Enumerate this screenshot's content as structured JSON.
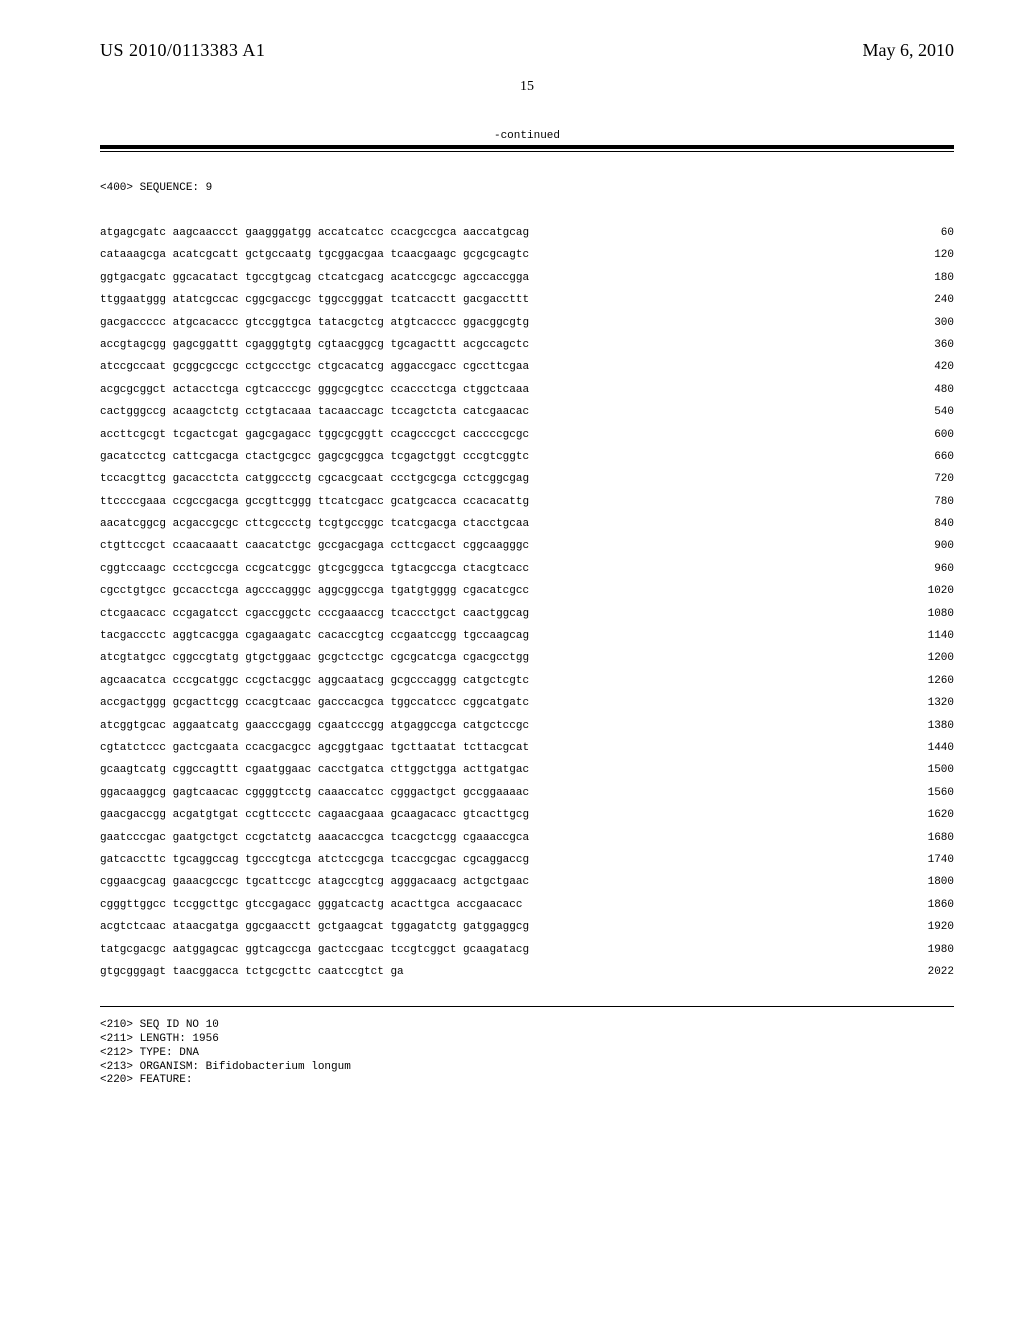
{
  "header": {
    "publication_number": "US 2010/0113383 A1",
    "date": "May 6, 2010",
    "page_number": "15"
  },
  "continued_label": "-continued",
  "sequence_header": "<400> SEQUENCE: 9",
  "sequence_lines": [
    {
      "bases": "atgagcgatc aagcaaccct gaagggatgg accatcatcc ccacgccgca aaccatgcag",
      "pos": "60"
    },
    {
      "bases": "cataaagcga acatcgcatt gctgccaatg tgcggacgaa tcaacgaagc gcgcgcagtc",
      "pos": "120"
    },
    {
      "bases": "ggtgacgatc ggcacatact tgccgtgcag ctcatcgacg acatccgcgc agccaccgga",
      "pos": "180"
    },
    {
      "bases": "ttggaatggg atatcgccac cggcgaccgc tggccgggat tcatcacctt gacgaccttt",
      "pos": "240"
    },
    {
      "bases": "gacgaccccc atgcacaccc gtccggtgca tatacgctcg atgtcacccc ggacggcgtg",
      "pos": "300"
    },
    {
      "bases": "accgtagcgg gagcggattt cgagggtgtg cgtaacggcg tgcagacttt acgccagctc",
      "pos": "360"
    },
    {
      "bases": "atccgccaat gcggcgccgc cctgccctgc ctgcacatcg aggaccgacc cgccttcgaa",
      "pos": "420"
    },
    {
      "bases": "acgcgcggct actacctcga cgtcacccgc gggcgcgtcc ccaccctcga ctggctcaaa",
      "pos": "480"
    },
    {
      "bases": "cactgggccg acaagctctg cctgtacaaa tacaaccagc tccagctcta catcgaacac",
      "pos": "540"
    },
    {
      "bases": "accttcgcgt tcgactcgat gagcgagacc tggcgcggtt ccagcccgct caccccgcgc",
      "pos": "600"
    },
    {
      "bases": "gacatcctcg cattcgacga ctactgcgcc gagcgcggca tcgagctggt cccgtcggtc",
      "pos": "660"
    },
    {
      "bases": "tccacgttcg gacacctcta catggccctg cgcacgcaat ccctgcgcga cctcggcgag",
      "pos": "720"
    },
    {
      "bases": "ttccccgaaa ccgccgacga gccgttcggg ttcatcgacc gcatgcacca ccacacattg",
      "pos": "780"
    },
    {
      "bases": "aacatcggcg acgaccgcgc cttcgccctg tcgtgccggc tcatcgacga ctacctgcaa",
      "pos": "840"
    },
    {
      "bases": "ctgttccgct ccaacaaatt caacatctgc gccgacgaga ccttcgacct cggcaagggc",
      "pos": "900"
    },
    {
      "bases": "cggtccaagc ccctcgccga ccgcatcggc gtcgcggcca tgtacgccga ctacgtcacc",
      "pos": "960"
    },
    {
      "bases": "cgcctgtgcc gccacctcga agcccagggc aggcggccga tgatgtgggg cgacatcgcc",
      "pos": "1020"
    },
    {
      "bases": "ctcgaacacc ccgagatcct cgaccggctc cccgaaaccg tcaccctgct caactggcag",
      "pos": "1080"
    },
    {
      "bases": "tacgaccctc aggtcacgga cgagaagatc cacaccgtcg ccgaatccgg tgccaagcag",
      "pos": "1140"
    },
    {
      "bases": "atcgtatgcc cggccgtatg gtgctggaac gcgctcctgc cgcgcatcga cgacgcctgg",
      "pos": "1200"
    },
    {
      "bases": "agcaacatca cccgcatggc ccgctacggc aggcaatacg gcgcccaggg catgctcgtc",
      "pos": "1260"
    },
    {
      "bases": "accgactggg gcgacttcgg ccacgtcaac gacccacgca tggccatccc cggcatgatc",
      "pos": "1320"
    },
    {
      "bases": "atcggtgcac aggaatcatg gaacccgagg cgaatcccgg atgaggccga catgctccgc",
      "pos": "1380"
    },
    {
      "bases": "cgtatctccc gactcgaata ccacgacgcc agcggtgaac tgcttaatat tcttacgcat",
      "pos": "1440"
    },
    {
      "bases": "gcaagtcatg cggccagttt cgaatggaac cacctgatca cttggctgga acttgatgac",
      "pos": "1500"
    },
    {
      "bases": "ggacaaggcg gagtcaacac cggggtcctg caaaccatcc cgggactgct gccggaaaac",
      "pos": "1560"
    },
    {
      "bases": "gaacgaccgg acgatgtgat ccgttccctc cagaacgaaa gcaagacacc gtcacttgcg",
      "pos": "1620"
    },
    {
      "bases": "gaatcccgac gaatgctgct ccgctatctg aaacaccgca tcacgctcgg cgaaaccgca",
      "pos": "1680"
    },
    {
      "bases": "gatcaccttc tgcaggccag tgcccgtcga atctccgcga tcaccgcgac cgcaggaccg",
      "pos": "1740"
    },
    {
      "bases": "cggaacgcag gaaacgccgc tgcattccgc atagccgtcg agggacaacg actgctgaac",
      "pos": "1800"
    },
    {
      "bases": "cgggttggcc tccggcttgc gtccgagacc gggatcactg acacttgca accgaacacc",
      "pos": "1860"
    },
    {
      "bases": "acgtctcaac ataacgatga ggcgaacctt gctgaagcat tggagatctg gatggaggcg",
      "pos": "1920"
    },
    {
      "bases": "tatgcgacgc aatggagcac ggtcagccga gactccgaac tccgtcggct gcaagatacg",
      "pos": "1980"
    },
    {
      "bases": "gtgcgggagt taacggacca tctgcgcttc caatccgtct ga",
      "pos": "2022"
    }
  ],
  "footer_meta": [
    "<210> SEQ ID NO 10",
    "<211> LENGTH: 1956",
    "<212> TYPE: DNA",
    "<213> ORGANISM: Bifidobacterium longum",
    "<220> FEATURE:"
  ]
}
